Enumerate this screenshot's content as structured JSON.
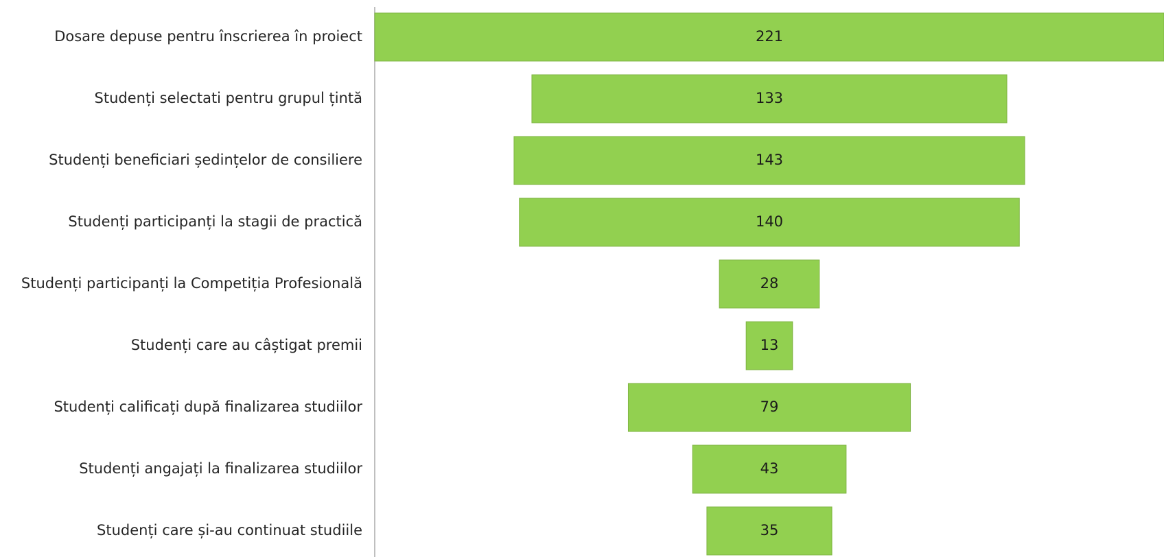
{
  "chart_data": {
    "type": "bar",
    "orientation": "horizontal-centered-funnel",
    "title": "",
    "xlabel": "",
    "ylabel": "",
    "grid": false,
    "legend": "none",
    "bar_color": "#92D050",
    "bar_border_color": "#7fb443",
    "categories": [
      "Dosare depuse pentru înscrierea în proiect",
      "Studenți selectati pentru grupul țintă",
      "Studenți beneficiari ședințelor de consiliere",
      "Studenți participanți la stagii de practică",
      "Studenți participanți la Competiția Profesională",
      "Studenți care au câștigat premii",
      "Studenți calificați după finalizarea studiilor",
      "Studenți angajați la finalizarea studiilor",
      "Studenți care și-au continuat studiile"
    ],
    "values": [
      221,
      133,
      143,
      140,
      28,
      13,
      79,
      43,
      35
    ],
    "data_labels": [
      "221",
      "133",
      "143",
      "140",
      "28",
      "13",
      "79",
      "43",
      "35"
    ],
    "xlim": [
      0,
      221
    ]
  }
}
